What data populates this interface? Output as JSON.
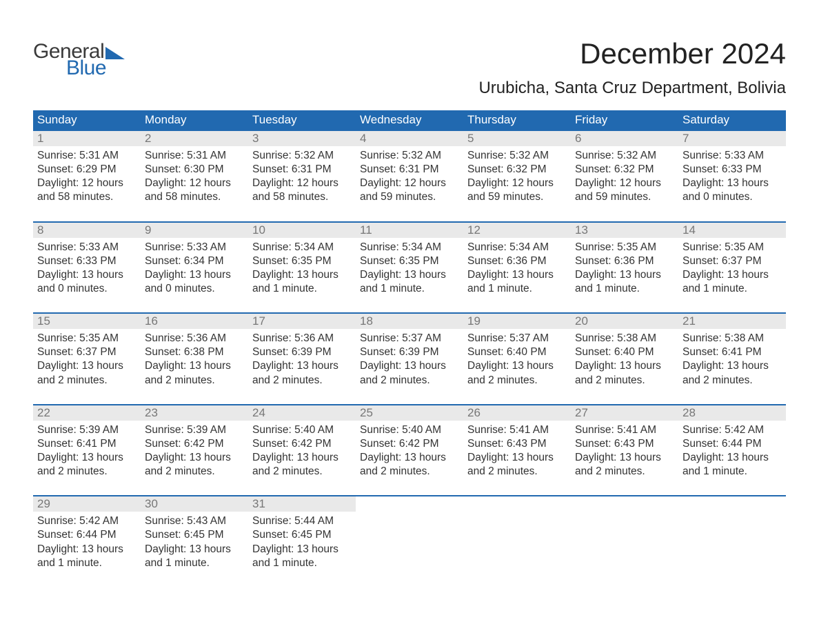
{
  "brand": {
    "text1": "General",
    "text2": "Blue",
    "text1_color": "#3a3a3a",
    "text2_color": "#2169b0",
    "triangle_color": "#2169b0"
  },
  "title": "December 2024",
  "location": "Urubicha, Santa Cruz Department, Bolivia",
  "colors": {
    "header_bg": "#2169b0",
    "header_text": "#ffffff",
    "daynum_bg": "#e9e9e9",
    "daynum_text": "#777777",
    "body_text": "#333333",
    "row_border": "#2169b0",
    "page_bg": "#ffffff"
  },
  "typography": {
    "title_fontsize": 42,
    "location_fontsize": 24,
    "weekday_fontsize": 17,
    "daynum_fontsize": 17,
    "body_fontsize": 15.5
  },
  "weekdays": [
    "Sunday",
    "Monday",
    "Tuesday",
    "Wednesday",
    "Thursday",
    "Friday",
    "Saturday"
  ],
  "weeks": [
    [
      {
        "n": "1",
        "sunrise": "Sunrise: 5:31 AM",
        "sunset": "Sunset: 6:29 PM",
        "daylight1": "Daylight: 12 hours",
        "daylight2": "and 58 minutes."
      },
      {
        "n": "2",
        "sunrise": "Sunrise: 5:31 AM",
        "sunset": "Sunset: 6:30 PM",
        "daylight1": "Daylight: 12 hours",
        "daylight2": "and 58 minutes."
      },
      {
        "n": "3",
        "sunrise": "Sunrise: 5:32 AM",
        "sunset": "Sunset: 6:31 PM",
        "daylight1": "Daylight: 12 hours",
        "daylight2": "and 58 minutes."
      },
      {
        "n": "4",
        "sunrise": "Sunrise: 5:32 AM",
        "sunset": "Sunset: 6:31 PM",
        "daylight1": "Daylight: 12 hours",
        "daylight2": "and 59 minutes."
      },
      {
        "n": "5",
        "sunrise": "Sunrise: 5:32 AM",
        "sunset": "Sunset: 6:32 PM",
        "daylight1": "Daylight: 12 hours",
        "daylight2": "and 59 minutes."
      },
      {
        "n": "6",
        "sunrise": "Sunrise: 5:32 AM",
        "sunset": "Sunset: 6:32 PM",
        "daylight1": "Daylight: 12 hours",
        "daylight2": "and 59 minutes."
      },
      {
        "n": "7",
        "sunrise": "Sunrise: 5:33 AM",
        "sunset": "Sunset: 6:33 PM",
        "daylight1": "Daylight: 13 hours",
        "daylight2": "and 0 minutes."
      }
    ],
    [
      {
        "n": "8",
        "sunrise": "Sunrise: 5:33 AM",
        "sunset": "Sunset: 6:33 PM",
        "daylight1": "Daylight: 13 hours",
        "daylight2": "and 0 minutes."
      },
      {
        "n": "9",
        "sunrise": "Sunrise: 5:33 AM",
        "sunset": "Sunset: 6:34 PM",
        "daylight1": "Daylight: 13 hours",
        "daylight2": "and 0 minutes."
      },
      {
        "n": "10",
        "sunrise": "Sunrise: 5:34 AM",
        "sunset": "Sunset: 6:35 PM",
        "daylight1": "Daylight: 13 hours",
        "daylight2": "and 1 minute."
      },
      {
        "n": "11",
        "sunrise": "Sunrise: 5:34 AM",
        "sunset": "Sunset: 6:35 PM",
        "daylight1": "Daylight: 13 hours",
        "daylight2": "and 1 minute."
      },
      {
        "n": "12",
        "sunrise": "Sunrise: 5:34 AM",
        "sunset": "Sunset: 6:36 PM",
        "daylight1": "Daylight: 13 hours",
        "daylight2": "and 1 minute."
      },
      {
        "n": "13",
        "sunrise": "Sunrise: 5:35 AM",
        "sunset": "Sunset: 6:36 PM",
        "daylight1": "Daylight: 13 hours",
        "daylight2": "and 1 minute."
      },
      {
        "n": "14",
        "sunrise": "Sunrise: 5:35 AM",
        "sunset": "Sunset: 6:37 PM",
        "daylight1": "Daylight: 13 hours",
        "daylight2": "and 1 minute."
      }
    ],
    [
      {
        "n": "15",
        "sunrise": "Sunrise: 5:35 AM",
        "sunset": "Sunset: 6:37 PM",
        "daylight1": "Daylight: 13 hours",
        "daylight2": "and 2 minutes."
      },
      {
        "n": "16",
        "sunrise": "Sunrise: 5:36 AM",
        "sunset": "Sunset: 6:38 PM",
        "daylight1": "Daylight: 13 hours",
        "daylight2": "and 2 minutes."
      },
      {
        "n": "17",
        "sunrise": "Sunrise: 5:36 AM",
        "sunset": "Sunset: 6:39 PM",
        "daylight1": "Daylight: 13 hours",
        "daylight2": "and 2 minutes."
      },
      {
        "n": "18",
        "sunrise": "Sunrise: 5:37 AM",
        "sunset": "Sunset: 6:39 PM",
        "daylight1": "Daylight: 13 hours",
        "daylight2": "and 2 minutes."
      },
      {
        "n": "19",
        "sunrise": "Sunrise: 5:37 AM",
        "sunset": "Sunset: 6:40 PM",
        "daylight1": "Daylight: 13 hours",
        "daylight2": "and 2 minutes."
      },
      {
        "n": "20",
        "sunrise": "Sunrise: 5:38 AM",
        "sunset": "Sunset: 6:40 PM",
        "daylight1": "Daylight: 13 hours",
        "daylight2": "and 2 minutes."
      },
      {
        "n": "21",
        "sunrise": "Sunrise: 5:38 AM",
        "sunset": "Sunset: 6:41 PM",
        "daylight1": "Daylight: 13 hours",
        "daylight2": "and 2 minutes."
      }
    ],
    [
      {
        "n": "22",
        "sunrise": "Sunrise: 5:39 AM",
        "sunset": "Sunset: 6:41 PM",
        "daylight1": "Daylight: 13 hours",
        "daylight2": "and 2 minutes."
      },
      {
        "n": "23",
        "sunrise": "Sunrise: 5:39 AM",
        "sunset": "Sunset: 6:42 PM",
        "daylight1": "Daylight: 13 hours",
        "daylight2": "and 2 minutes."
      },
      {
        "n": "24",
        "sunrise": "Sunrise: 5:40 AM",
        "sunset": "Sunset: 6:42 PM",
        "daylight1": "Daylight: 13 hours",
        "daylight2": "and 2 minutes."
      },
      {
        "n": "25",
        "sunrise": "Sunrise: 5:40 AM",
        "sunset": "Sunset: 6:42 PM",
        "daylight1": "Daylight: 13 hours",
        "daylight2": "and 2 minutes."
      },
      {
        "n": "26",
        "sunrise": "Sunrise: 5:41 AM",
        "sunset": "Sunset: 6:43 PM",
        "daylight1": "Daylight: 13 hours",
        "daylight2": "and 2 minutes."
      },
      {
        "n": "27",
        "sunrise": "Sunrise: 5:41 AM",
        "sunset": "Sunset: 6:43 PM",
        "daylight1": "Daylight: 13 hours",
        "daylight2": "and 2 minutes."
      },
      {
        "n": "28",
        "sunrise": "Sunrise: 5:42 AM",
        "sunset": "Sunset: 6:44 PM",
        "daylight1": "Daylight: 13 hours",
        "daylight2": "and 1 minute."
      }
    ],
    [
      {
        "n": "29",
        "sunrise": "Sunrise: 5:42 AM",
        "sunset": "Sunset: 6:44 PM",
        "daylight1": "Daylight: 13 hours",
        "daylight2": "and 1 minute."
      },
      {
        "n": "30",
        "sunrise": "Sunrise: 5:43 AM",
        "sunset": "Sunset: 6:45 PM",
        "daylight1": "Daylight: 13 hours",
        "daylight2": "and 1 minute."
      },
      {
        "n": "31",
        "sunrise": "Sunrise: 5:44 AM",
        "sunset": "Sunset: 6:45 PM",
        "daylight1": "Daylight: 13 hours",
        "daylight2": "and 1 minute."
      },
      null,
      null,
      null,
      null
    ]
  ]
}
